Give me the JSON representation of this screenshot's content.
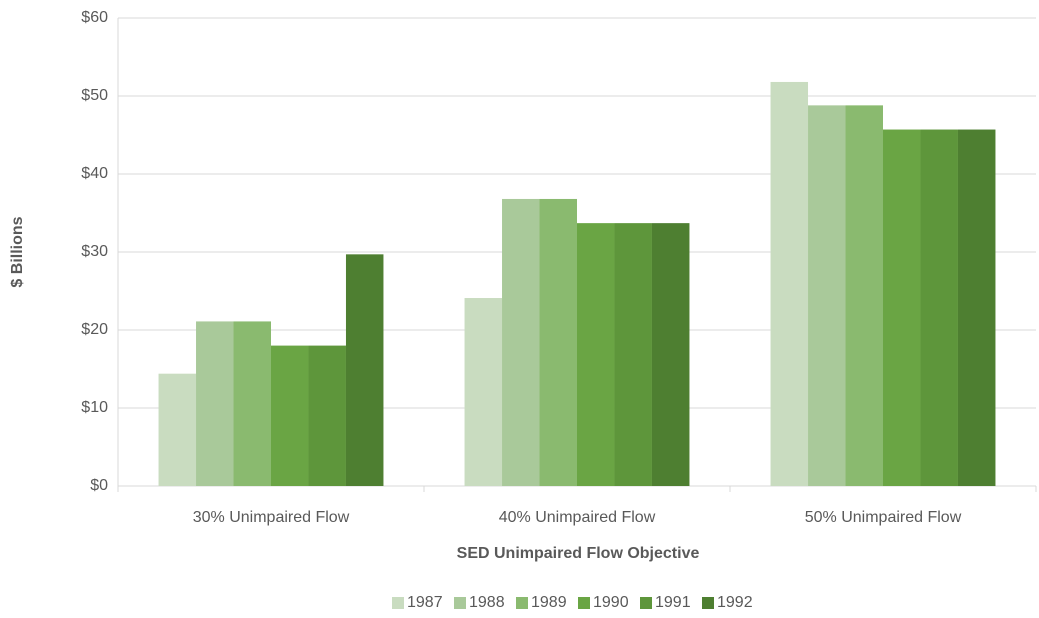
{
  "chart_data": {
    "type": "bar",
    "x_label": "SED Unimpaired Flow Objective",
    "y_label": "$ Billions",
    "categories": [
      "30% Unimpaired Flow",
      "40% Unimpaired Flow",
      "50% Unimpaired Flow"
    ],
    "series": [
      {
        "name": "1987",
        "color": "#c9dcc0",
        "values": [
          14.4,
          24.1,
          51.8
        ]
      },
      {
        "name": "1988",
        "color": "#a9c99a",
        "values": [
          21.1,
          36.8,
          48.8
        ]
      },
      {
        "name": "1989",
        "color": "#8aba6f",
        "values": [
          21.1,
          36.8,
          48.8
        ]
      },
      {
        "name": "1990",
        "color": "#6aa544",
        "values": [
          18.0,
          33.7,
          45.7
        ]
      },
      {
        "name": "1991",
        "color": "#5e963b",
        "values": [
          18.0,
          33.7,
          45.7
        ]
      },
      {
        "name": "1992",
        "color": "#4e7f31",
        "values": [
          29.7,
          33.7,
          45.7
        ]
      }
    ],
    "ylim": [
      0,
      60
    ],
    "yticks": [
      {
        "value": 0,
        "label": "$0"
      },
      {
        "value": 10,
        "label": "$10"
      },
      {
        "value": 20,
        "label": "$20"
      },
      {
        "value": 30,
        "label": "$30"
      },
      {
        "value": 40,
        "label": "$40"
      },
      {
        "value": 50,
        "label": "$50"
      },
      {
        "value": 60,
        "label": "$60"
      }
    ],
    "grid": true,
    "legend": "bottom"
  }
}
